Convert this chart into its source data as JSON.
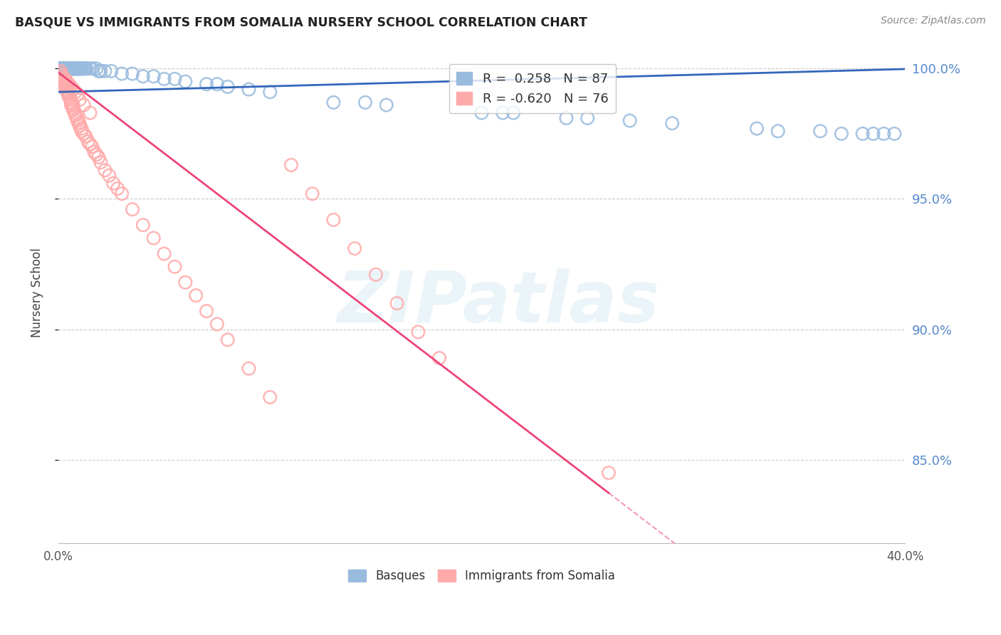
{
  "title": "BASQUE VS IMMIGRANTS FROM SOMALIA NURSERY SCHOOL CORRELATION CHART",
  "source": "Source: ZipAtlas.com",
  "ylabel": "Nursery School",
  "legend_label_1": "Basques",
  "legend_label_2": "Immigrants from Somalia",
  "R1": 0.258,
  "N1": 87,
  "R2": -0.62,
  "N2": 76,
  "color_blue": "#99BBDD",
  "color_pink": "#FFAAAA",
  "line_blue": "#3366BB",
  "line_pink": "#EE4477",
  "watermark_text": "ZIPatlas",
  "x_min": 0.0,
  "x_max": 0.4,
  "y_min": 0.818,
  "y_max": 1.01,
  "y_ticks": [
    1.0,
    0.95,
    0.9,
    0.85
  ],
  "y_tick_labels": [
    "100.0%",
    "95.0%",
    "90.0%",
    "85.0%"
  ],
  "blue_scatter_x": [
    0.001,
    0.001,
    0.002,
    0.002,
    0.002,
    0.003,
    0.003,
    0.003,
    0.003,
    0.004,
    0.004,
    0.004,
    0.004,
    0.005,
    0.005,
    0.005,
    0.005,
    0.005,
    0.006,
    0.006,
    0.006,
    0.006,
    0.006,
    0.006,
    0.006,
    0.007,
    0.007,
    0.007,
    0.007,
    0.007,
    0.008,
    0.008,
    0.008,
    0.008,
    0.009,
    0.009,
    0.009,
    0.01,
    0.01,
    0.01,
    0.01,
    0.011,
    0.011,
    0.012,
    0.012,
    0.013,
    0.013,
    0.015,
    0.016,
    0.018,
    0.019,
    0.02,
    0.022,
    0.025,
    0.03,
    0.035,
    0.04,
    0.045,
    0.05,
    0.055,
    0.06,
    0.07,
    0.075,
    0.08,
    0.09,
    0.1,
    0.13,
    0.145,
    0.155,
    0.2,
    0.21,
    0.215,
    0.27,
    0.29,
    0.33,
    0.34,
    0.36,
    0.37,
    0.38,
    0.385,
    0.39,
    0.395,
    0.24,
    0.25
  ],
  "blue_scatter_y": [
    1.0,
    1.0,
    1.0,
    1.0,
    1.0,
    1.0,
    1.0,
    1.0,
    1.0,
    1.0,
    1.0,
    1.0,
    1.0,
    1.0,
    1.0,
    1.0,
    1.0,
    1.0,
    1.0,
    1.0,
    1.0,
    1.0,
    1.0,
    1.0,
    1.0,
    1.0,
    1.0,
    1.0,
    1.0,
    1.0,
    1.0,
    1.0,
    1.0,
    1.0,
    1.0,
    1.0,
    1.0,
    1.0,
    1.0,
    1.0,
    1.0,
    1.0,
    1.0,
    1.0,
    1.0,
    1.0,
    1.0,
    1.0,
    1.0,
    1.0,
    0.999,
    0.999,
    0.999,
    0.999,
    0.998,
    0.998,
    0.997,
    0.997,
    0.996,
    0.996,
    0.995,
    0.994,
    0.994,
    0.993,
    0.992,
    0.991,
    0.987,
    0.987,
    0.986,
    0.983,
    0.983,
    0.983,
    0.98,
    0.979,
    0.977,
    0.976,
    0.976,
    0.975,
    0.975,
    0.975,
    0.975,
    0.975,
    0.981,
    0.981
  ],
  "pink_scatter_x": [
    0.001,
    0.001,
    0.001,
    0.002,
    0.002,
    0.002,
    0.003,
    0.003,
    0.003,
    0.004,
    0.004,
    0.004,
    0.005,
    0.005,
    0.005,
    0.006,
    0.006,
    0.006,
    0.007,
    0.007,
    0.007,
    0.008,
    0.008,
    0.009,
    0.009,
    0.01,
    0.01,
    0.011,
    0.011,
    0.012,
    0.013,
    0.014,
    0.015,
    0.016,
    0.017,
    0.018,
    0.019,
    0.02,
    0.022,
    0.024,
    0.026,
    0.028,
    0.03,
    0.035,
    0.04,
    0.045,
    0.05,
    0.055,
    0.06,
    0.065,
    0.07,
    0.075,
    0.08,
    0.09,
    0.1,
    0.11,
    0.12,
    0.13,
    0.14,
    0.15,
    0.16,
    0.17,
    0.18,
    0.003,
    0.004,
    0.005,
    0.006,
    0.007,
    0.008,
    0.009,
    0.01,
    0.012,
    0.015,
    0.26
  ],
  "pink_scatter_y": [
    0.999,
    0.998,
    0.997,
    0.997,
    0.996,
    0.995,
    0.995,
    0.994,
    0.993,
    0.993,
    0.992,
    0.991,
    0.991,
    0.99,
    0.989,
    0.988,
    0.987,
    0.986,
    0.986,
    0.985,
    0.984,
    0.983,
    0.982,
    0.981,
    0.98,
    0.979,
    0.978,
    0.977,
    0.976,
    0.975,
    0.974,
    0.972,
    0.971,
    0.97,
    0.968,
    0.967,
    0.966,
    0.964,
    0.961,
    0.959,
    0.956,
    0.954,
    0.952,
    0.946,
    0.94,
    0.935,
    0.929,
    0.924,
    0.918,
    0.913,
    0.907,
    0.902,
    0.896,
    0.885,
    0.874,
    0.963,
    0.952,
    0.942,
    0.931,
    0.921,
    0.91,
    0.899,
    0.889,
    0.996,
    0.995,
    0.994,
    0.993,
    0.992,
    0.991,
    0.99,
    0.988,
    0.986,
    0.983,
    0.845
  ],
  "pink_line_x_start": 0.0,
  "pink_line_x_solid_end": 0.26,
  "pink_line_x_dash_end": 0.4,
  "pink_line_y_at_0": 0.9985,
  "pink_line_slope": -0.62,
  "blue_line_y_at_0": 0.991,
  "blue_line_slope": 0.022
}
